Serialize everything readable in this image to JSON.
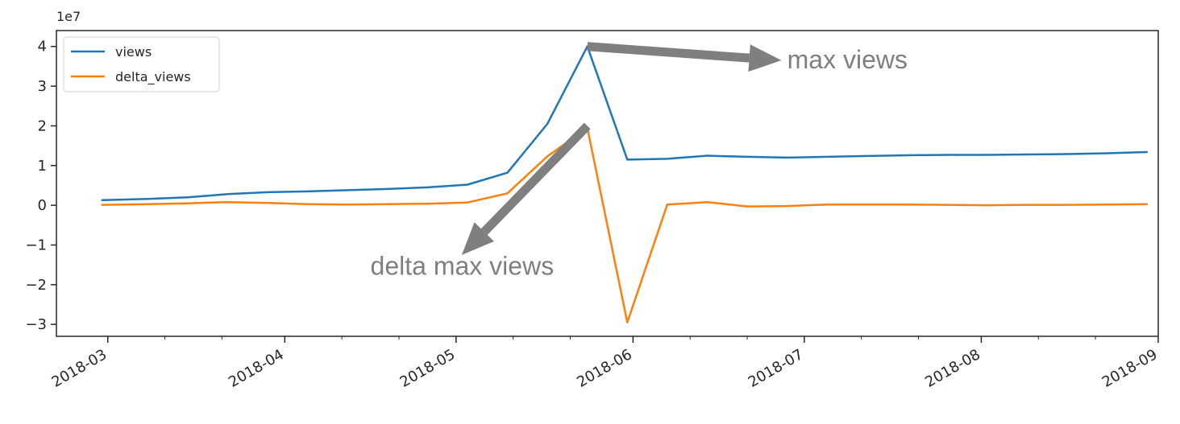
{
  "chart_data": {
    "type": "line",
    "title": "",
    "xlabel": "",
    "ylabel": "",
    "y_multiplier_label": "1e7",
    "y_unit_multiplier": 10000000,
    "xlim": [
      "2018-02-20",
      "2018-09-01"
    ],
    "ylim": [
      -3.3,
      4.4
    ],
    "yticks": [
      -3,
      -2,
      -1,
      0,
      1,
      2,
      3,
      4
    ],
    "xticks": [
      {
        "date": "2018-03-01",
        "label": "2018-03"
      },
      {
        "date": "2018-04-01",
        "label": "2018-04"
      },
      {
        "date": "2018-05-01",
        "label": "2018-05"
      },
      {
        "date": "2018-06-01",
        "label": "2018-06"
      },
      {
        "date": "2018-07-01",
        "label": "2018-07"
      },
      {
        "date": "2018-08-01",
        "label": "2018-08"
      },
      {
        "date": "2018-09-01",
        "label": "2018-09"
      }
    ],
    "minor_xticks": [
      "2018-03-11",
      "2018-03-21",
      "2018-04-11",
      "2018-04-21",
      "2018-05-11",
      "2018-05-21",
      "2018-06-11",
      "2018-06-21",
      "2018-07-11",
      "2018-07-21",
      "2018-08-11",
      "2018-08-21"
    ],
    "grid": false,
    "legend_position": "upper-left",
    "x": [
      "2018-02-28",
      "2018-03-08",
      "2018-03-15",
      "2018-03-22",
      "2018-03-29",
      "2018-04-05",
      "2018-04-12",
      "2018-04-19",
      "2018-04-26",
      "2018-05-03",
      "2018-05-10",
      "2018-05-17",
      "2018-05-24",
      "2018-05-31",
      "2018-06-07",
      "2018-06-14",
      "2018-06-21",
      "2018-06-28",
      "2018-07-05",
      "2018-07-12",
      "2018-07-19",
      "2018-07-26",
      "2018-08-02",
      "2018-08-09",
      "2018-08-16",
      "2018-08-23",
      "2018-08-30"
    ],
    "series": [
      {
        "name": "views",
        "color": "#1f77b4",
        "values": [
          0.13,
          0.16,
          0.2,
          0.28,
          0.33,
          0.35,
          0.38,
          0.41,
          0.45,
          0.52,
          0.82,
          2.05,
          4.0,
          1.15,
          1.17,
          1.25,
          1.22,
          1.2,
          1.22,
          1.24,
          1.26,
          1.27,
          1.27,
          1.28,
          1.29,
          1.31,
          1.34
        ]
      },
      {
        "name": "delta_views",
        "color": "#ff7f0e",
        "values": [
          0.01,
          0.03,
          0.05,
          0.08,
          0.06,
          0.03,
          0.02,
          0.03,
          0.04,
          0.07,
          0.3,
          1.23,
          1.95,
          -2.95,
          0.02,
          0.08,
          -0.03,
          -0.02,
          0.02,
          0.02,
          0.02,
          0.01,
          0.0,
          0.01,
          0.01,
          0.02,
          0.03
        ]
      }
    ],
    "annotations": [
      {
        "text": "max views",
        "arrow_from": {
          "date": "2018-05-24",
          "value": 4.0
        },
        "arrow_to": {
          "date": "2018-06-27",
          "value": 3.65
        },
        "label_at": {
          "date": "2018-06-28",
          "value": 3.45
        }
      },
      {
        "text": "delta max views",
        "arrow_from": {
          "date": "2018-05-24",
          "value": 2.0
        },
        "arrow_to": {
          "date": "2018-05-02",
          "value": -1.25
        },
        "label_at": {
          "date": "2018-04-16",
          "value": -1.75
        }
      }
    ],
    "annotation_color": "#7f7f7f"
  }
}
